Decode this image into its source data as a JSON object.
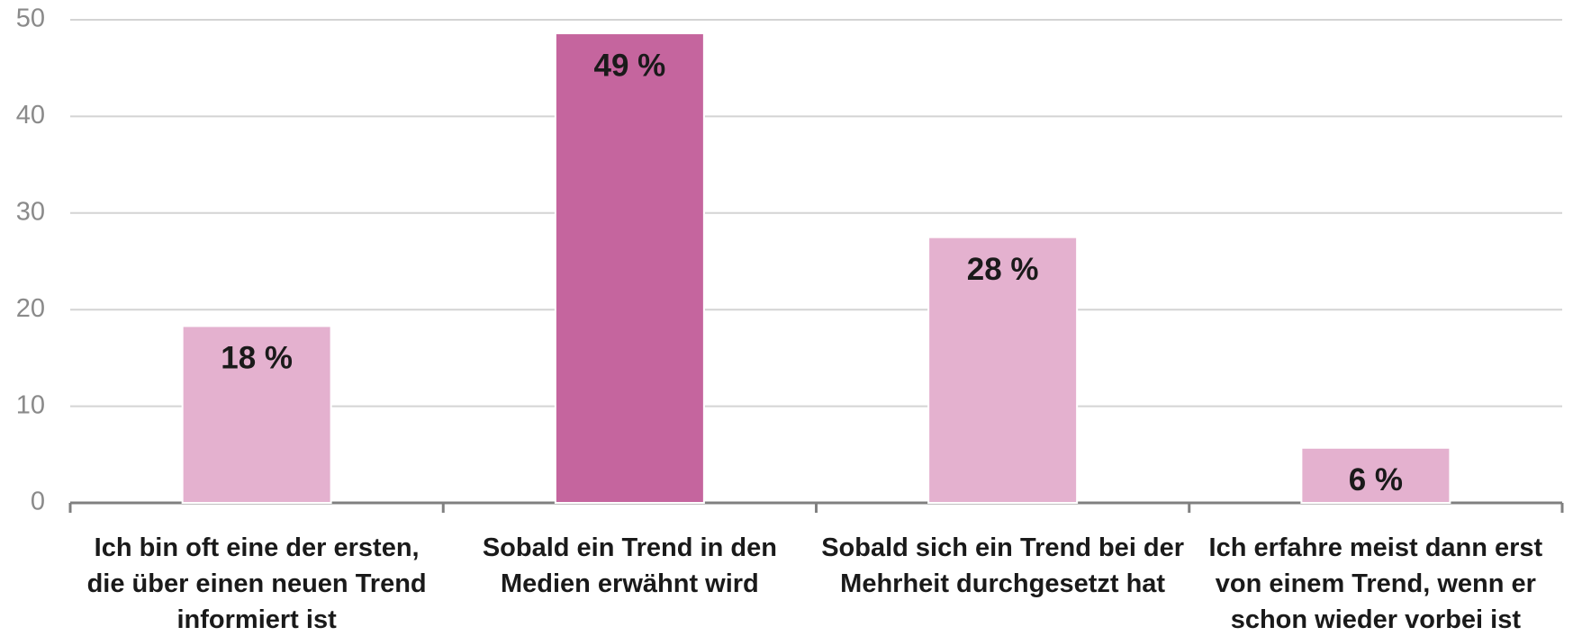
{
  "chart_data": {
    "type": "bar",
    "categories": [
      "Ich bin oft eine der ersten, die über einen neuen Trend informiert ist",
      "Sobald ein Trend in den Medien erwähnt wird",
      "Sobald sich ein Trend bei der Mehrheit durchgesetzt hat",
      "Ich erfahre meist dann erst von einem Trend, wenn er schon wieder vorbei ist"
    ],
    "values": [
      18.3,
      48.6,
      27.5,
      5.7
    ],
    "value_labels": [
      "18 %",
      "49 %",
      "28 %",
      "6 %"
    ],
    "colors": [
      "#e4b1cf",
      "#c5659e",
      "#e4b1cf",
      "#e4b1cf"
    ],
    "ylim": [
      0,
      50
    ],
    "yticks": [
      0,
      10,
      20,
      30,
      40,
      50
    ],
    "grid": true
  }
}
